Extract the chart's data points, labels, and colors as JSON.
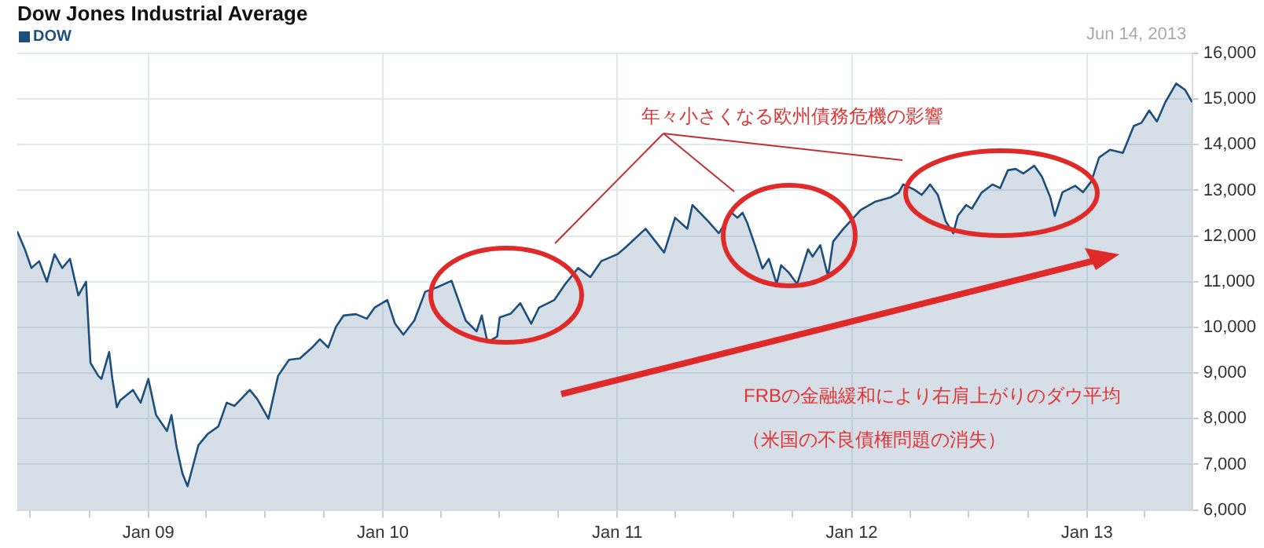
{
  "chart_data": {
    "type": "area",
    "title": "Dow Jones Industrial Average",
    "series": [
      {
        "name": "DOW",
        "color": "#1d4f7c",
        "x": [
          "2008-06-11",
          "2008-06-23",
          "2008-07-03",
          "2008-07-15",
          "2008-07-27",
          "2008-08-08",
          "2008-08-20",
          "2008-09-01",
          "2008-09-14",
          "2008-09-26",
          "2008-10-03",
          "2008-10-15",
          "2008-10-20",
          "2008-11-01",
          "2008-11-06",
          "2008-11-13",
          "2008-11-18",
          "2008-12-08",
          "2008-12-20",
          "2009-01-01",
          "2009-01-13",
          "2009-01-30",
          "2009-02-06",
          "2009-02-14",
          "2009-02-23",
          "2009-03-03",
          "2009-03-20",
          "2009-04-03",
          "2009-04-20",
          "2009-05-03",
          "2009-05-15",
          "2009-06-08",
          "2009-06-20",
          "2009-07-07",
          "2009-07-22",
          "2009-08-08",
          "2009-08-25",
          "2009-09-13",
          "2009-09-25",
          "2009-10-08",
          "2009-10-20",
          "2009-11-01",
          "2009-11-20",
          "2009-12-07",
          "2009-12-19",
          "2010-01-08",
          "2010-01-20",
          "2010-02-02",
          "2010-02-19",
          "2010-03-08",
          "2010-03-27",
          "2010-04-18",
          "2010-05-10",
          "2010-05-27",
          "2010-06-04",
          "2010-06-13",
          "2010-06-28",
          "2010-07-02",
          "2010-07-19",
          "2010-08-03",
          "2010-08-20",
          "2010-09-01",
          "2010-09-25",
          "2010-10-12",
          "2010-11-01",
          "2010-11-20",
          "2010-12-07",
          "2011-01-01",
          "2011-01-13",
          "2011-02-14",
          "2011-03-15",
          "2011-04-01",
          "2011-04-20",
          "2011-04-28",
          "2011-05-22",
          "2011-06-08",
          "2011-06-28",
          "2011-07-07",
          "2011-07-15",
          "2011-07-22",
          "2011-08-03",
          "2011-08-15",
          "2011-08-25",
          "2011-09-06",
          "2011-09-13",
          "2011-09-25",
          "2011-10-08",
          "2011-10-25",
          "2011-11-01",
          "2011-11-13",
          "2011-11-25",
          "2011-12-03",
          "2011-12-19",
          "2012-01-15",
          "2012-02-06",
          "2012-03-02",
          "2012-03-14",
          "2012-03-21",
          "2012-04-07",
          "2012-04-19",
          "2012-05-02",
          "2012-05-14",
          "2012-05-26",
          "2012-06-07",
          "2012-06-14",
          "2012-06-27",
          "2012-07-06",
          "2012-07-21",
          "2012-08-07",
          "2012-08-19",
          "2012-08-31",
          "2012-09-12",
          "2012-09-24",
          "2012-10-11",
          "2012-10-23",
          "2012-11-05",
          "2012-11-12",
          "2012-11-24",
          "2012-12-14",
          "2012-12-26",
          "2013-01-08",
          "2013-01-20",
          "2013-02-06",
          "2013-02-26",
          "2013-03-15",
          "2013-03-27",
          "2013-04-08",
          "2013-04-20",
          "2013-05-03",
          "2013-05-20",
          "2013-06-03",
          "2013-06-14"
        ],
        "values": [
          12100,
          11700,
          11300,
          11450,
          11000,
          11600,
          11300,
          11500,
          10700,
          11000,
          9220,
          8940,
          8870,
          9460,
          8870,
          8250,
          8400,
          8630,
          8350,
          8870,
          8080,
          7730,
          8080,
          7380,
          6800,
          6520,
          7420,
          7660,
          7830,
          8350,
          8280,
          8630,
          8420,
          8000,
          8940,
          9290,
          9320,
          9560,
          9740,
          9560,
          10010,
          10260,
          10290,
          10190,
          10430,
          10600,
          10080,
          9840,
          10150,
          10780,
          10880,
          11020,
          10150,
          9910,
          10260,
          9670,
          9800,
          10220,
          10300,
          10530,
          10080,
          10430,
          10600,
          10950,
          11300,
          11100,
          11450,
          11600,
          11740,
          12160,
          11640,
          12400,
          12160,
          12680,
          12330,
          12060,
          12510,
          12400,
          12510,
          12300,
          11810,
          11290,
          11500,
          10950,
          11360,
          11200,
          10950,
          11710,
          11550,
          11800,
          11120,
          11880,
          12160,
          12570,
          12750,
          12850,
          12950,
          13130,
          13020,
          12900,
          13130,
          12900,
          12330,
          12060,
          12440,
          12680,
          12600,
          12950,
          13130,
          13050,
          13440,
          13470,
          13370,
          13540,
          13300,
          12850,
          12440,
          12960,
          13100,
          12960,
          13200,
          13720,
          13890,
          13820,
          14410,
          14480,
          14750,
          14510,
          14930,
          15340,
          15200,
          14930
        ]
      }
    ],
    "xlim": [
      "2008-06-11",
      "2013-06-14"
    ],
    "xticks": [
      {
        "value": "2008-07-01",
        "label": null
      },
      {
        "value": "2008-10-01",
        "label": null
      },
      {
        "value": "2009-01-01",
        "label": "Jan 09"
      },
      {
        "value": "2009-04-01",
        "label": null
      },
      {
        "value": "2009-07-01",
        "label": null
      },
      {
        "value": "2009-10-01",
        "label": null
      },
      {
        "value": "2010-01-01",
        "label": "Jan 10"
      },
      {
        "value": "2010-04-01",
        "label": null
      },
      {
        "value": "2010-07-01",
        "label": null
      },
      {
        "value": "2010-10-01",
        "label": null
      },
      {
        "value": "2011-01-01",
        "label": "Jan 11"
      },
      {
        "value": "2011-04-01",
        "label": null
      },
      {
        "value": "2011-07-01",
        "label": null
      },
      {
        "value": "2011-10-01",
        "label": null
      },
      {
        "value": "2012-01-01",
        "label": "Jan 12"
      },
      {
        "value": "2012-04-01",
        "label": null
      },
      {
        "value": "2012-07-01",
        "label": null
      },
      {
        "value": "2012-10-01",
        "label": null
      },
      {
        "value": "2013-01-01",
        "label": "Jan 13"
      },
      {
        "value": "2013-04-01",
        "label": null
      }
    ],
    "ylim": [
      6000,
      16000
    ],
    "yticks": [
      {
        "value": 6000,
        "label": "6,000"
      },
      {
        "value": 7000,
        "label": "7,000"
      },
      {
        "value": 8000,
        "label": "8,000"
      },
      {
        "value": 9000,
        "label": "9,000"
      },
      {
        "value": 10000,
        "label": "10,000"
      },
      {
        "value": 11000,
        "label": "11,000"
      },
      {
        "value": 12000,
        "label": "12,000"
      },
      {
        "value": 13000,
        "label": "13,000"
      },
      {
        "value": 14000,
        "label": "14,000"
      },
      {
        "value": 15000,
        "label": "15,000"
      },
      {
        "value": 16000,
        "label": "16,000"
      }
    ],
    "grid": true,
    "legend": "top left",
    "annotations": [
      "Jun 14, 2013",
      "年々小さくなる欧州債務危機の影響",
      "FRBの金融緩和により右肩上がりのダウ平均",
      "（米国の不良債権問題の消失）"
    ]
  }
}
